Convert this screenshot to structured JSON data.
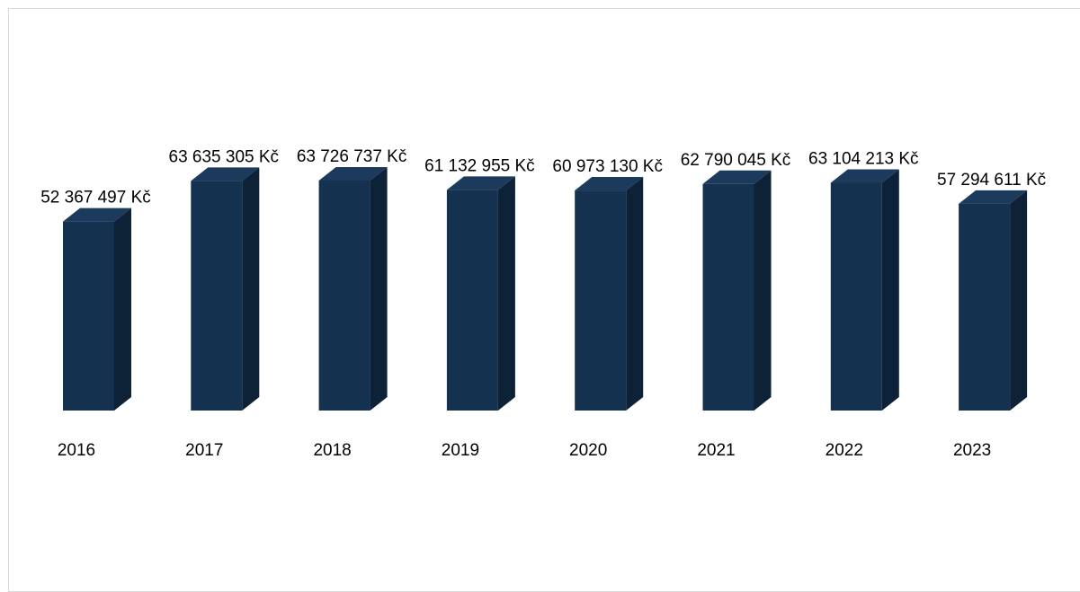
{
  "chart_data": {
    "type": "bar",
    "style": "3d-column",
    "categories": [
      "2016",
      "2017",
      "2018",
      "2019",
      "2020",
      "2021",
      "2022",
      "2023"
    ],
    "values": [
      52367497,
      63635305,
      63726737,
      61132955,
      60973130,
      62790045,
      63104213,
      57294611
    ],
    "data_labels": [
      "52 367 497 Kč",
      "63 635 305 Kč",
      "63 726 737 Kč",
      "61 132 955 Kč",
      "60 973 130 Kč",
      "62 790 045 Kč",
      "63 104 213 Kč",
      "57 294 611 Kč"
    ],
    "title": "",
    "xlabel": "",
    "ylabel": "",
    "grid": false,
    "legend": "none",
    "colors": {
      "bar_front": "#14314f",
      "bar_side": "#0d2236",
      "bar_top": "#1b3a5c",
      "frame_border": "#d9d9d9"
    }
  }
}
